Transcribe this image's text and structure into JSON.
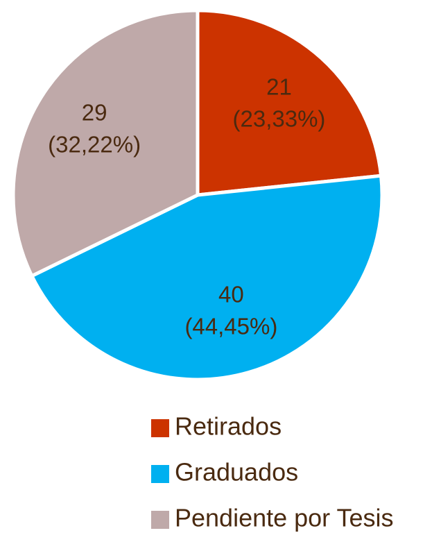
{
  "chart_data": {
    "type": "pie",
    "categories": [
      "Retirados",
      "Graduados",
      "Pendiente por Tesis"
    ],
    "values": [
      21,
      40,
      29
    ],
    "percent_labels": [
      "(23,33%)",
      "(44,45%)",
      "(32,22%)"
    ],
    "colors": [
      "#cc3300",
      "#00b0f0",
      "#bfa9a9"
    ],
    "legend": "bottom"
  }
}
